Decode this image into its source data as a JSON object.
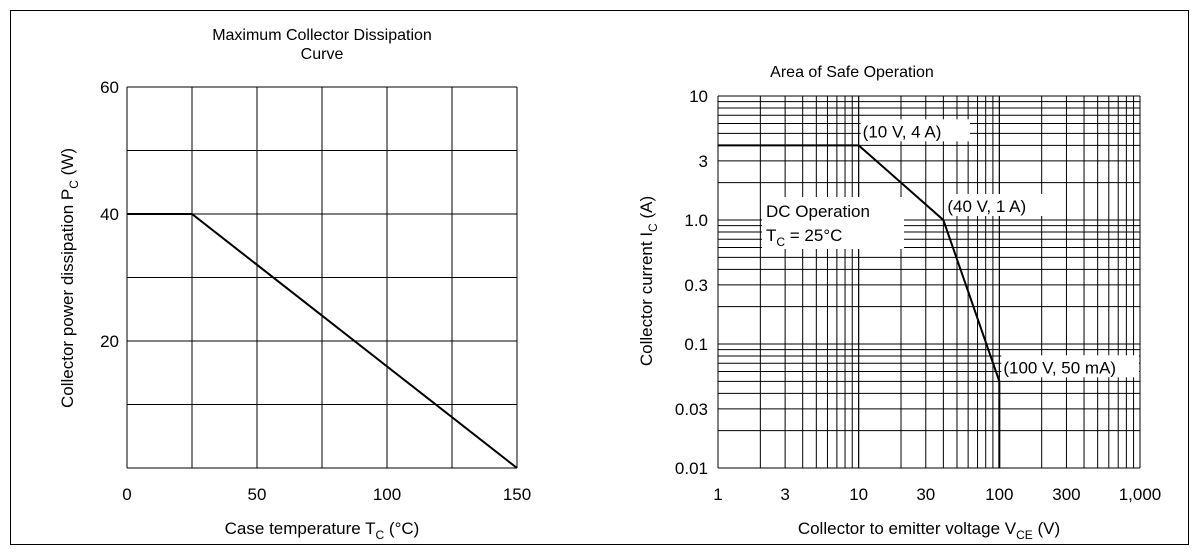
{
  "chart_data": [
    {
      "type": "line",
      "title_lines": [
        "Maximum Collector Dissipation",
        "Curve"
      ],
      "xlabel": {
        "prefix": "Case temperature  T",
        "sub": "C",
        "suffix": "  (°C)"
      },
      "ylabel": {
        "prefix": "Collector power dissipation  P",
        "sub": "C",
        "suffix": "  (W)"
      },
      "xlim": [
        0,
        150
      ],
      "ylim": [
        0,
        60
      ],
      "x_ticks": [
        0,
        50,
        100,
        150
      ],
      "x_tick_labels": [
        "0",
        "50",
        "100",
        "150"
      ],
      "y_ticks": [
        20,
        40,
        60
      ],
      "y_tick_labels": [
        "20",
        "40",
        "60"
      ],
      "x_grid": [
        0,
        25,
        50,
        75,
        100,
        125,
        150
      ],
      "y_grid": [
        0,
        10,
        20,
        30,
        40,
        50,
        60
      ],
      "grid": true,
      "series": [
        {
          "x": [
            0,
            25,
            150
          ],
          "y": [
            40,
            40,
            0
          ]
        }
      ]
    },
    {
      "type": "line",
      "title": "Area of Safe Operation",
      "xscale": "log",
      "yscale": "log",
      "xlim": [
        1,
        1000
      ],
      "ylim": [
        0.01,
        10
      ],
      "x_ticks": [
        1,
        3,
        10,
        30,
        100,
        300,
        1000
      ],
      "x_tick_labels": [
        "1",
        "3",
        "10",
        "30",
        "100",
        "300",
        "1,000"
      ],
      "y_ticks": [
        0.01,
        0.03,
        0.1,
        0.3,
        1,
        3,
        10
      ],
      "y_tick_labels": [
        "0.01",
        "0.03",
        "0.1",
        "0.3",
        "1.0",
        "3",
        "10"
      ],
      "grid": true,
      "xlabel": {
        "prefix": "Collector to emitter voltage  V",
        "sub": "CE",
        "suffix": "  (V)"
      },
      "ylabel": {
        "prefix": "Collector current  I",
        "sub": "C",
        "suffix": "  (A)"
      },
      "series": [
        {
          "x": [
            1,
            10,
            40,
            100,
            100
          ],
          "y": [
            4,
            4,
            1,
            0.05,
            0.01
          ]
        }
      ],
      "annotations": [
        {
          "text": "(10 V, 4 A)",
          "x": 10,
          "y": 4
        },
        {
          "text": "(40 V, 1 A)",
          "x": 40,
          "y": 1
        },
        {
          "text": "(100 V, 50 mA)",
          "x": 100,
          "y": 0.05
        }
      ],
      "condition": {
        "line1": "DC Operation",
        "line2": {
          "prefix": "T",
          "sub": "C",
          "suffix": " = 25°C"
        }
      }
    }
  ]
}
